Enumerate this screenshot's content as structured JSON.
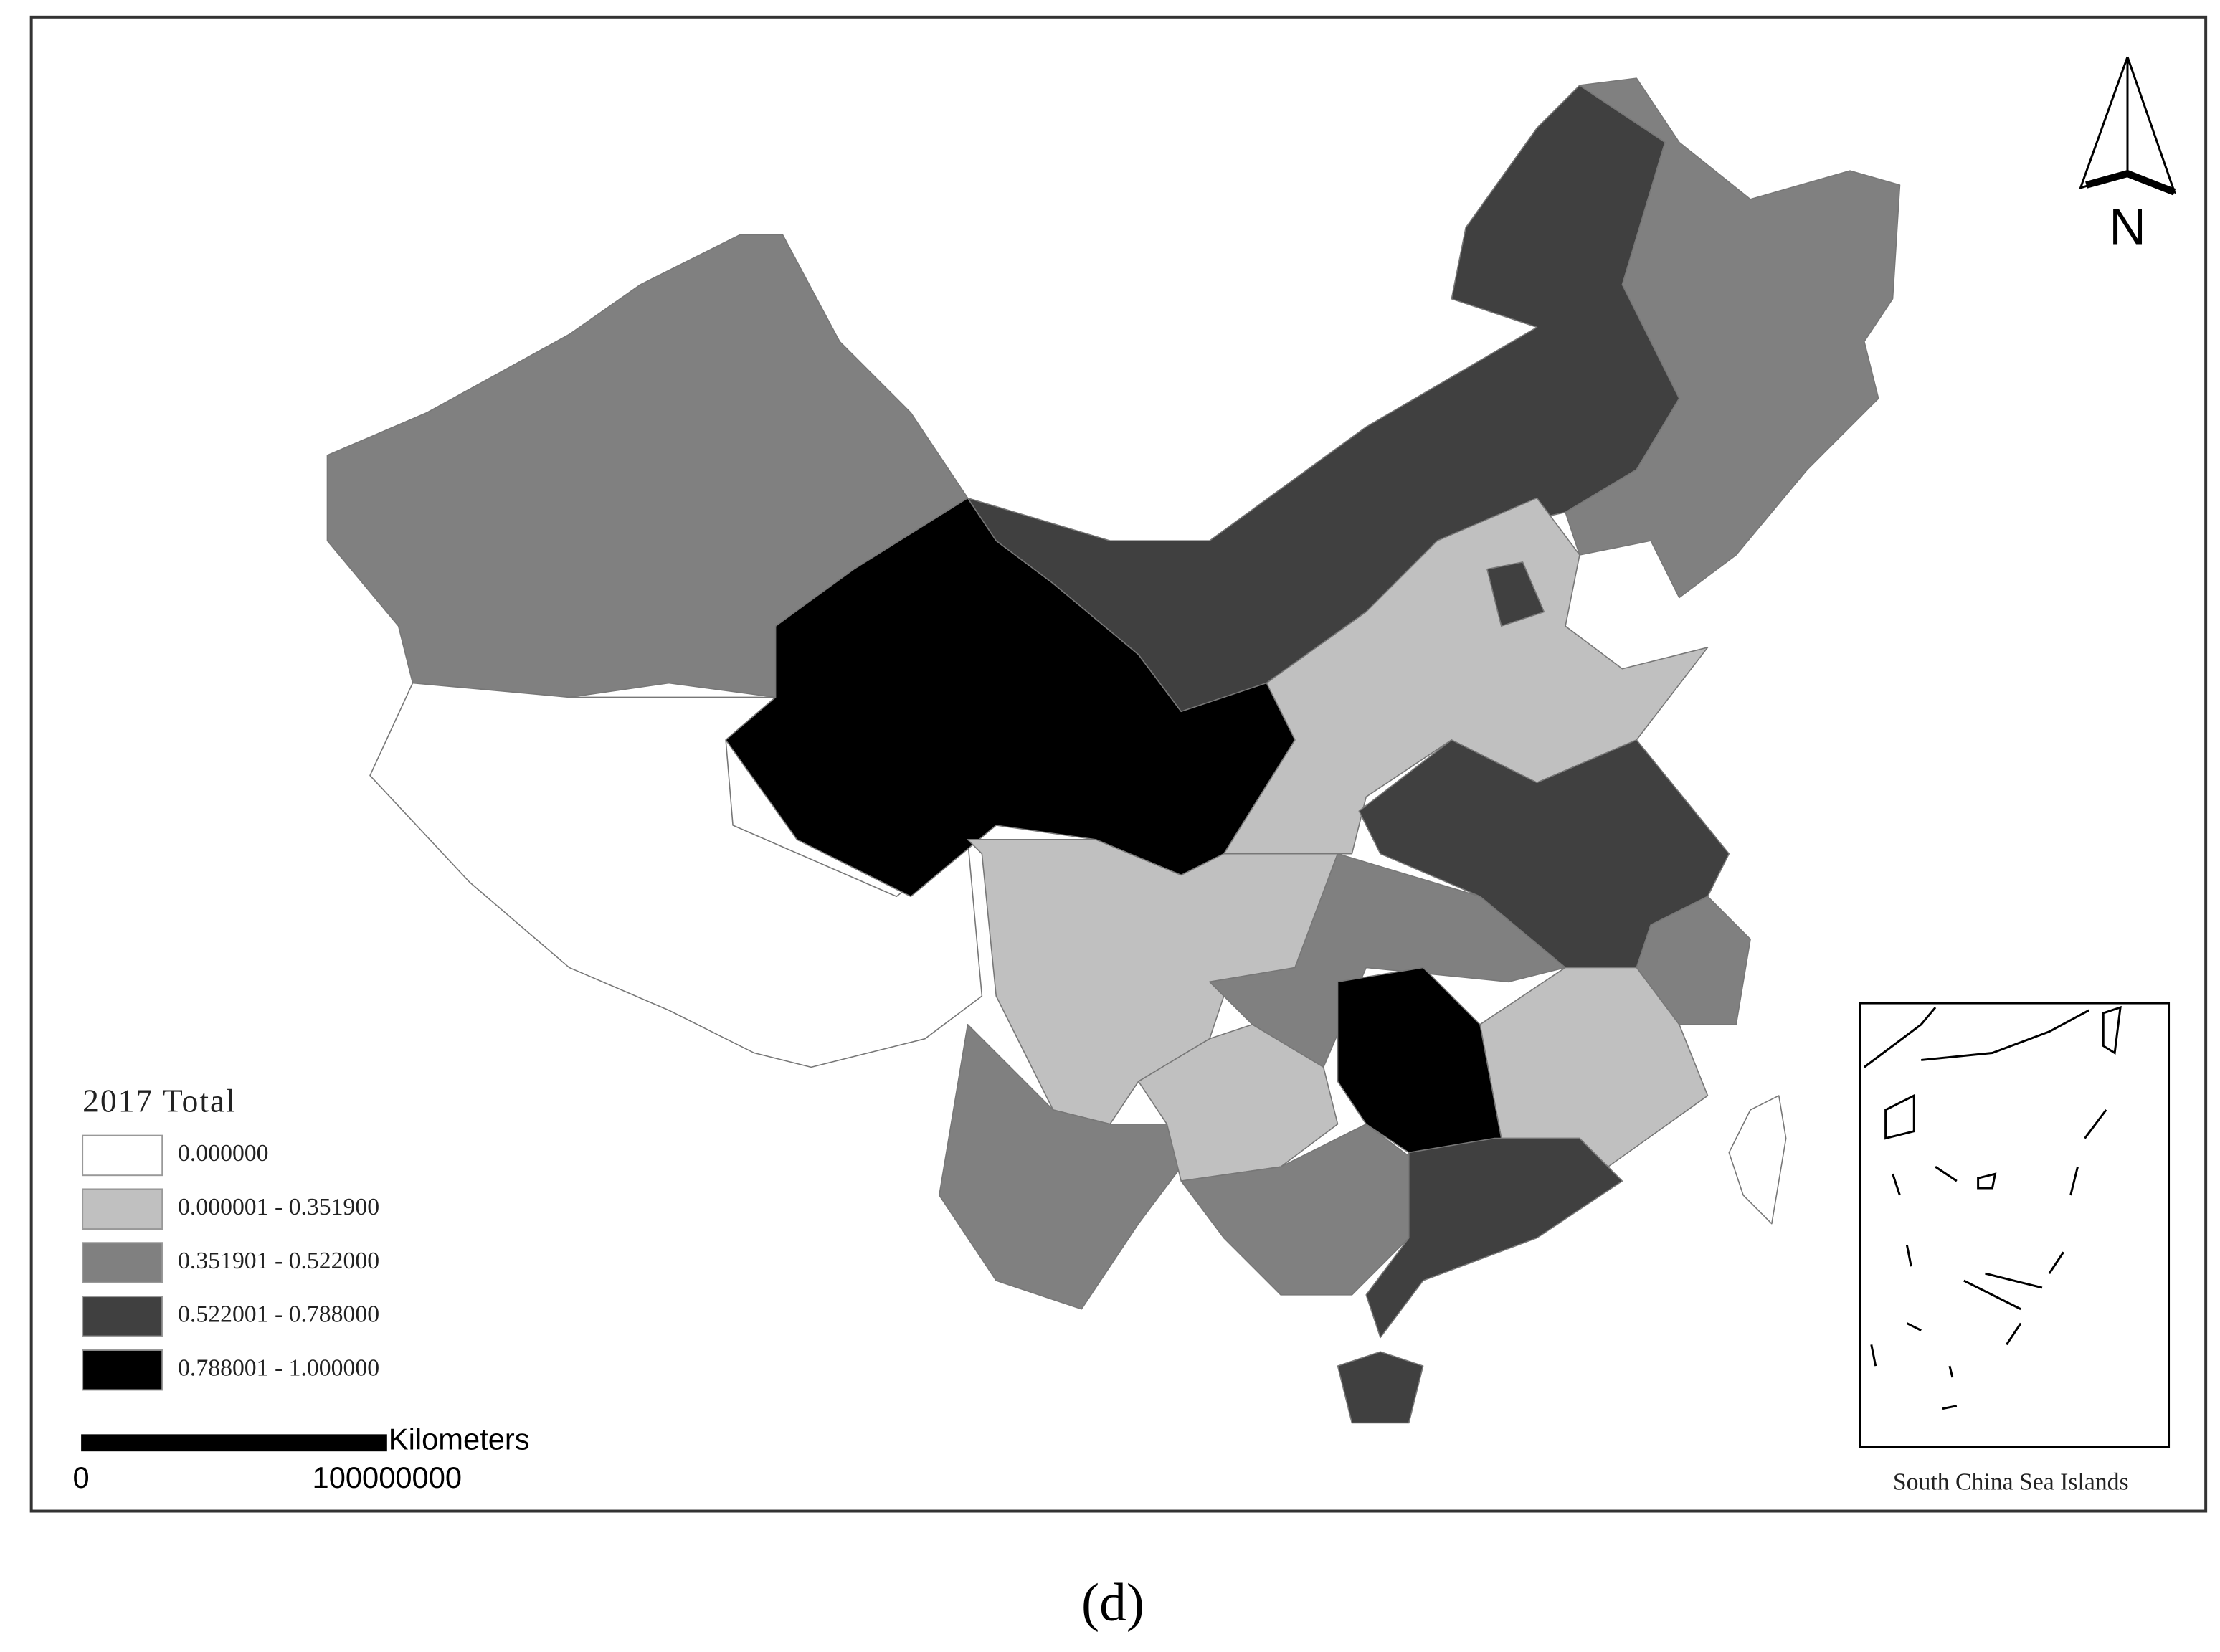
{
  "legend": {
    "title": "2017 Total",
    "items": [
      {
        "label": "0.000000",
        "color": "#ffffff"
      },
      {
        "label": "0.000001 - 0.351900",
        "color": "#c0c0c0"
      },
      {
        "label": "0.351901 - 0.522000",
        "color": "#808080"
      },
      {
        "label": "0.522001 - 0.788000",
        "color": "#404040"
      },
      {
        "label": "0.788001 - 1.000000",
        "color": "#000000"
      }
    ]
  },
  "scale_bar": {
    "unit": "Kilometers",
    "labels": [
      "0",
      "100000000"
    ]
  },
  "north_arrow": "N",
  "inset_label": "South China Sea Islands",
  "caption": "(d)"
}
